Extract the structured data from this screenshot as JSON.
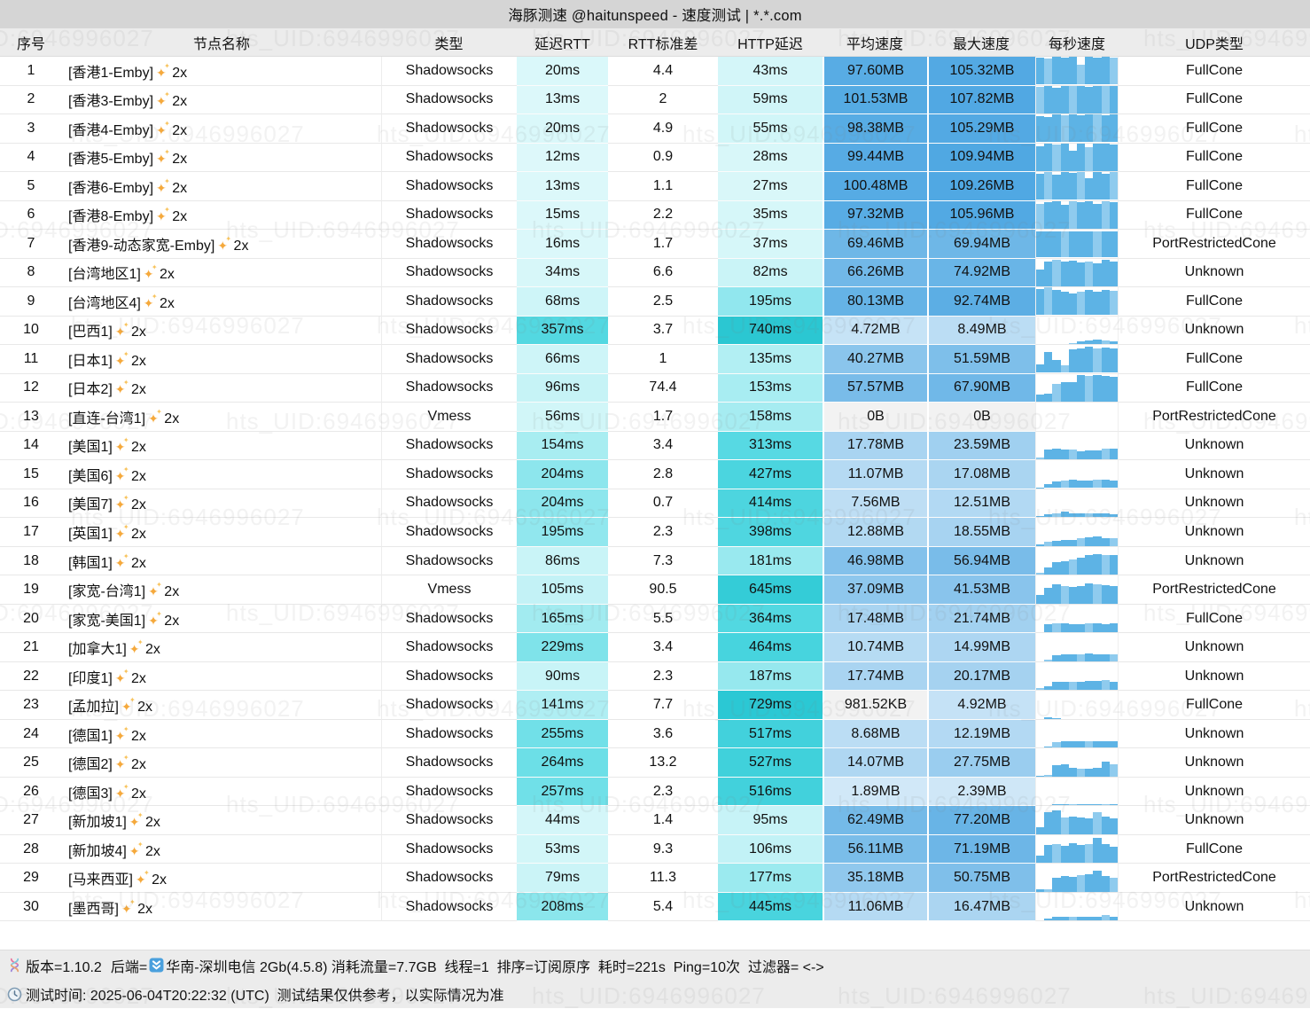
{
  "title": "海豚测速 @haitunspeed - 速度测试 | *.*.com",
  "watermark": "hts_UID:6946996027",
  "columns": [
    "序号",
    "节点名称",
    "类型",
    "延迟RTT",
    "RTT标准差",
    "HTTP延迟",
    "平均速度",
    "最大速度",
    "每秒速度",
    "UDP类型"
  ],
  "column_names": [
    "col-index",
    "col-node-name",
    "col-type",
    "col-latency-rtt",
    "col-rtt-stddev",
    "col-http-latency",
    "col-avg-speed",
    "col-max-speed",
    "col-speed-per-second",
    "col-udp-type"
  ],
  "icons": {
    "sparkle": "✦"
  },
  "colors": {
    "title_bar_bg": "#d5d5d5",
    "header_bg": "#ececec",
    "footer_bg": "#ececec",
    "speed_blue_strong": "#58ace4",
    "latency_teal_strong": "#2fb9c9",
    "bar_blue": "#5db3e5",
    "bar_blue_light": "#8fcbee",
    "zero_gray": "#f2f2f2",
    "sparkle_orange": "#f5a93c"
  },
  "rows": [
    {
      "no": "1",
      "name": "[香港1-Emby]",
      "mult": "2x",
      "type": "Shadowsocks",
      "rtt": "20ms",
      "rtt_ms": 20,
      "std": "4.4",
      "http": "43ms",
      "http_ms": 43,
      "avg": "97.60MB",
      "avg_mb": 97.6,
      "max": "105.32MB",
      "max_mb": 105.32,
      "udp": "FullCone",
      "bars": [
        98,
        95,
        100,
        97,
        100,
        72,
        100,
        98,
        100,
        97
      ]
    },
    {
      "no": "2",
      "name": "[香港3-Emby]",
      "mult": "2x",
      "type": "Shadowsocks",
      "rtt": "13ms",
      "rtt_ms": 13,
      "std": "2",
      "http": "59ms",
      "http_ms": 59,
      "avg": "101.53MB",
      "avg_mb": 101.53,
      "max": "107.82MB",
      "max_mb": 107.82,
      "udp": "FullCone",
      "bars": [
        97,
        100,
        93,
        100,
        98,
        100,
        97,
        100,
        99,
        100
      ]
    },
    {
      "no": "3",
      "name": "[香港4-Emby]",
      "mult": "2x",
      "type": "Shadowsocks",
      "rtt": "20ms",
      "rtt_ms": 20,
      "std": "4.9",
      "http": "55ms",
      "http_ms": 55,
      "avg": "98.38MB",
      "avg_mb": 98.38,
      "max": "105.29MB",
      "max_mb": 105.29,
      "udp": "FullCone",
      "bars": [
        95,
        90,
        100,
        97,
        100,
        98,
        100,
        100,
        97,
        100
      ]
    },
    {
      "no": "4",
      "name": "[香港5-Emby]",
      "mult": "2x",
      "type": "Shadowsocks",
      "rtt": "12ms",
      "rtt_ms": 12,
      "std": "0.9",
      "http": "28ms",
      "http_ms": 28,
      "avg": "99.44MB",
      "avg_mb": 99.44,
      "max": "109.94MB",
      "max_mb": 109.94,
      "udp": "FullCone",
      "bars": [
        90,
        100,
        95,
        100,
        75,
        100,
        85,
        100,
        100,
        95
      ]
    },
    {
      "no": "5",
      "name": "[香港6-Emby]",
      "mult": "2x",
      "type": "Shadowsocks",
      "rtt": "13ms",
      "rtt_ms": 13,
      "std": "1.1",
      "http": "27ms",
      "http_ms": 27,
      "avg": "100.48MB",
      "avg_mb": 100.48,
      "max": "109.26MB",
      "max_mb": 109.26,
      "udp": "FullCone",
      "bars": [
        95,
        100,
        90,
        100,
        97,
        100,
        80,
        100,
        95,
        100
      ]
    },
    {
      "no": "6",
      "name": "[香港8-Emby]",
      "mult": "2x",
      "type": "Shadowsocks",
      "rtt": "15ms",
      "rtt_ms": 15,
      "std": "2.2",
      "http": "35ms",
      "http_ms": 35,
      "avg": "97.32MB",
      "avg_mb": 97.32,
      "max": "105.96MB",
      "max_mb": 105.96,
      "udp": "FullCone",
      "bars": [
        90,
        95,
        100,
        85,
        100,
        95,
        100,
        90,
        100,
        95
      ]
    },
    {
      "no": "7",
      "name": "[香港9-动态家宽-Emby]",
      "mult": "2x",
      "type": "Shadowsocks",
      "rtt": "16ms",
      "rtt_ms": 16,
      "std": "1.7",
      "http": "37ms",
      "http_ms": 37,
      "avg": "69.46MB",
      "avg_mb": 69.46,
      "max": "69.94MB",
      "max_mb": 69.94,
      "udp": "PortRestrictedCone",
      "bars": [
        96,
        96,
        96,
        96,
        96,
        96,
        96,
        96,
        96,
        96
      ]
    },
    {
      "no": "8",
      "name": "[台湾地区1]",
      "mult": "2x",
      "type": "Shadowsocks",
      "rtt": "34ms",
      "rtt_ms": 34,
      "std": "6.6",
      "http": "82ms",
      "http_ms": 82,
      "avg": "66.26MB",
      "avg_mb": 66.26,
      "max": "74.92MB",
      "max_mb": 74.92,
      "udp": "Unknown",
      "bars": [
        60,
        90,
        95,
        90,
        92,
        88,
        90,
        85,
        95,
        90
      ]
    },
    {
      "no": "9",
      "name": "[台湾地区4]",
      "mult": "2x",
      "type": "Shadowsocks",
      "rtt": "68ms",
      "rtt_ms": 68,
      "std": "2.5",
      "http": "195ms",
      "http_ms": 195,
      "avg": "80.13MB",
      "avg_mb": 80.13,
      "max": "92.74MB",
      "max_mb": 92.74,
      "udp": "FullCone",
      "bars": [
        95,
        100,
        90,
        85,
        80,
        85,
        90,
        85,
        90,
        88
      ]
    },
    {
      "no": "10",
      "name": "[巴西1]",
      "mult": "2x",
      "type": "Shadowsocks",
      "rtt": "357ms",
      "rtt_ms": 357,
      "std": "3.7",
      "http": "740ms",
      "http_ms": 740,
      "avg": "4.72MB",
      "avg_mb": 4.72,
      "max": "8.49MB",
      "max_mb": 8.49,
      "udp": "Unknown",
      "bars": [
        0,
        0,
        0,
        0,
        4,
        8,
        12,
        15,
        12,
        10
      ]
    },
    {
      "no": "11",
      "name": "[日本1]",
      "mult": "2x",
      "type": "Shadowsocks",
      "rtt": "66ms",
      "rtt_ms": 66,
      "std": "1",
      "http": "135ms",
      "http_ms": 135,
      "avg": "40.27MB",
      "avg_mb": 40.27,
      "max": "51.59MB",
      "max_mb": 51.59,
      "udp": "FullCone",
      "bars": [
        30,
        75,
        45,
        28,
        85,
        90,
        95,
        90,
        92,
        88
      ]
    },
    {
      "no": "12",
      "name": "[日本2]",
      "mult": "2x",
      "type": "Shadowsocks",
      "rtt": "96ms",
      "rtt_ms": 96,
      "std": "74.4",
      "http": "153ms",
      "http_ms": 153,
      "avg": "57.57MB",
      "avg_mb": 57.57,
      "max": "67.90MB",
      "max_mb": 67.9,
      "udp": "FullCone",
      "bars": [
        25,
        30,
        65,
        72,
        70,
        95,
        92,
        95,
        93,
        90
      ]
    },
    {
      "no": "13",
      "name": "[直连-台湾1]",
      "mult": "2x",
      "type": "Vmess",
      "rtt": "56ms",
      "rtt_ms": 56,
      "std": "1.7",
      "http": "158ms",
      "http_ms": 158,
      "avg": "0B",
      "avg_mb": 0,
      "max": "0B",
      "max_mb": 0,
      "udp": "PortRestrictedCone",
      "bars": [
        0,
        0,
        0,
        0,
        0,
        0,
        0,
        0,
        0,
        0
      ]
    },
    {
      "no": "14",
      "name": "[美国1]",
      "mult": "2x",
      "type": "Shadowsocks",
      "rtt": "154ms",
      "rtt_ms": 154,
      "std": "3.4",
      "http": "313ms",
      "http_ms": 313,
      "avg": "17.78MB",
      "avg_mb": 17.78,
      "max": "23.59MB",
      "max_mb": 23.59,
      "udp": "Unknown",
      "bars": [
        5,
        35,
        37,
        35,
        36,
        30,
        32,
        33,
        40,
        37
      ]
    },
    {
      "no": "15",
      "name": "[美国6]",
      "mult": "2x",
      "type": "Shadowsocks",
      "rtt": "204ms",
      "rtt_ms": 204,
      "std": "2.8",
      "http": "427ms",
      "http_ms": 427,
      "avg": "11.07MB",
      "avg_mb": 11.07,
      "max": "17.08MB",
      "max_mb": 17.08,
      "udp": "Unknown",
      "bars": [
        3,
        15,
        25,
        27,
        30,
        28,
        27,
        30,
        32,
        28
      ]
    },
    {
      "no": "16",
      "name": "[美国7]",
      "mult": "2x",
      "type": "Shadowsocks",
      "rtt": "204ms",
      "rtt_ms": 204,
      "std": "0.7",
      "http": "414ms",
      "http_ms": 414,
      "avg": "7.56MB",
      "avg_mb": 7.56,
      "max": "12.51MB",
      "max_mb": 12.51,
      "udp": "Unknown",
      "bars": [
        3,
        10,
        12,
        18,
        13,
        12,
        14,
        13,
        12,
        11
      ]
    },
    {
      "no": "17",
      "name": "[英国1]",
      "mult": "2x",
      "type": "Shadowsocks",
      "rtt": "195ms",
      "rtt_ms": 195,
      "std": "2.3",
      "http": "398ms",
      "http_ms": 398,
      "avg": "12.88MB",
      "avg_mb": 12.88,
      "max": "18.55MB",
      "max_mb": 18.55,
      "udp": "Unknown",
      "bars": [
        5,
        14,
        17,
        20,
        22,
        26,
        30,
        33,
        28,
        26
      ]
    },
    {
      "no": "18",
      "name": "[韩国1]",
      "mult": "2x",
      "type": "Shadowsocks",
      "rtt": "86ms",
      "rtt_ms": 86,
      "std": "7.3",
      "http": "181ms",
      "http_ms": 181,
      "avg": "46.98MB",
      "avg_mb": 46.98,
      "max": "56.94MB",
      "max_mb": 56.94,
      "udp": "Unknown",
      "bars": [
        8,
        25,
        45,
        50,
        55,
        60,
        72,
        75,
        72,
        70
      ]
    },
    {
      "no": "19",
      "name": "[家宽-台湾1]",
      "mult": "2x",
      "type": "Vmess",
      "rtt": "105ms",
      "rtt_ms": 105,
      "std": "90.5",
      "http": "645ms",
      "http_ms": 645,
      "avg": "37.09MB",
      "avg_mb": 37.09,
      "max": "41.53MB",
      "max_mb": 41.53,
      "udp": "PortRestrictedCone",
      "bars": [
        30,
        55,
        68,
        62,
        60,
        62,
        72,
        70,
        66,
        63
      ]
    },
    {
      "no": "20",
      "name": "[家宽-美国1]",
      "mult": "2x",
      "type": "Shadowsocks",
      "rtt": "165ms",
      "rtt_ms": 165,
      "std": "5.5",
      "http": "364ms",
      "http_ms": 364,
      "avg": "17.48MB",
      "avg_mb": 17.48,
      "max": "21.74MB",
      "max_mb": 21.74,
      "udp": "FullCone",
      "bars": [
        0,
        30,
        32,
        33,
        30,
        30,
        32,
        31,
        30,
        32
      ]
    },
    {
      "no": "21",
      "name": "[加拿大1]",
      "mult": "2x",
      "type": "Shadowsocks",
      "rtt": "229ms",
      "rtt_ms": 229,
      "std": "3.4",
      "http": "464ms",
      "http_ms": 464,
      "avg": "10.74MB",
      "avg_mb": 10.74,
      "max": "14.99MB",
      "max_mb": 14.99,
      "udp": "Unknown",
      "bars": [
        0,
        5,
        22,
        25,
        25,
        24,
        27,
        25,
        25,
        24
      ]
    },
    {
      "no": "22",
      "name": "[印度1]",
      "mult": "2x",
      "type": "Shadowsocks",
      "rtt": "90ms",
      "rtt_ms": 90,
      "std": "2.3",
      "http": "187ms",
      "http_ms": 187,
      "avg": "17.74MB",
      "avg_mb": 17.74,
      "max": "20.17MB",
      "max_mb": 20.17,
      "udp": "Unknown",
      "bars": [
        8,
        12,
        30,
        30,
        30,
        30,
        32,
        32,
        35,
        30
      ]
    },
    {
      "no": "23",
      "name": "[孟加拉]",
      "mult": "2x",
      "type": "Shadowsocks",
      "rtt": "141ms",
      "rtt_ms": 141,
      "std": "7.7",
      "http": "729ms",
      "http_ms": 729,
      "avg": "981.52KB",
      "avg_mb": 0.96,
      "max": "4.92MB",
      "max_mb": 4.92,
      "udp": "FullCone",
      "bars": [
        0,
        6,
        2,
        0,
        0,
        0,
        0,
        0,
        0,
        0
      ]
    },
    {
      "no": "24",
      "name": "[德国1]",
      "mult": "2x",
      "type": "Shadowsocks",
      "rtt": "255ms",
      "rtt_ms": 255,
      "std": "3.6",
      "http": "517ms",
      "http_ms": 517,
      "avg": "8.68MB",
      "avg_mb": 8.68,
      "max": "12.19MB",
      "max_mb": 12.19,
      "udp": "Unknown",
      "bars": [
        0,
        5,
        20,
        22,
        22,
        22,
        23,
        22,
        22,
        22
      ]
    },
    {
      "no": "25",
      "name": "[德国2]",
      "mult": "2x",
      "type": "Shadowsocks",
      "rtt": "264ms",
      "rtt_ms": 264,
      "std": "13.2",
      "http": "527ms",
      "http_ms": 527,
      "avg": "14.07MB",
      "avg_mb": 14.07,
      "max": "27.75MB",
      "max_mb": 27.75,
      "udp": "Unknown",
      "bars": [
        2,
        5,
        40,
        45,
        30,
        28,
        27,
        30,
        55,
        45
      ]
    },
    {
      "no": "26",
      "name": "[德国3]",
      "mult": "2x",
      "type": "Shadowsocks",
      "rtt": "257ms",
      "rtt_ms": 257,
      "std": "2.3",
      "http": "516ms",
      "http_ms": 516,
      "avg": "1.89MB",
      "avg_mb": 1.89,
      "max": "2.39MB",
      "max_mb": 2.39,
      "udp": "Unknown",
      "bars": [
        1,
        2,
        4,
        4,
        5,
        4,
        4,
        5,
        4,
        4
      ]
    },
    {
      "no": "27",
      "name": "[新加坡1]",
      "mult": "2x",
      "type": "Shadowsocks",
      "rtt": "44ms",
      "rtt_ms": 44,
      "std": "1.4",
      "http": "95ms",
      "http_ms": 95,
      "avg": "62.49MB",
      "avg_mb": 62.49,
      "max": "77.20MB",
      "max_mb": 77.2,
      "udp": "Unknown",
      "bars": [
        25,
        80,
        85,
        60,
        62,
        60,
        58,
        80,
        62,
        58
      ]
    },
    {
      "no": "28",
      "name": "[新加坡4]",
      "mult": "2x",
      "type": "Shadowsocks",
      "rtt": "53ms",
      "rtt_ms": 53,
      "std": "9.3",
      "http": "106ms",
      "http_ms": 106,
      "avg": "56.11MB",
      "avg_mb": 56.11,
      "max": "71.19MB",
      "max_mb": 71.19,
      "udp": "FullCone",
      "bars": [
        25,
        65,
        68,
        62,
        70,
        65,
        68,
        92,
        68,
        60
      ]
    },
    {
      "no": "29",
      "name": "[马来西亚]",
      "mult": "2x",
      "type": "Shadowsocks",
      "rtt": "79ms",
      "rtt_ms": 79,
      "std": "11.3",
      "http": "177ms",
      "http_ms": 177,
      "avg": "35.18MB",
      "avg_mb": 35.18,
      "max": "50.75MB",
      "max_mb": 50.75,
      "udp": "PortRestrictedCone",
      "bars": [
        10,
        8,
        50,
        58,
        55,
        60,
        62,
        78,
        58,
        52
      ]
    },
    {
      "no": "30",
      "name": "[墨西哥]",
      "mult": "2x",
      "type": "Shadowsocks",
      "rtt": "208ms",
      "rtt_ms": 208,
      "std": "5.4",
      "http": "445ms",
      "http_ms": 445,
      "avg": "11.06MB",
      "avg_mb": 11.06,
      "max": "16.47MB",
      "max_mb": 16.47,
      "udp": "Unknown",
      "bars": [
        0,
        6,
        12,
        15,
        13,
        15,
        12,
        15,
        20,
        15
      ]
    }
  ],
  "footer": {
    "version": "版本=1.10.2",
    "backend_label": "后端=",
    "backend_value": "华南-深圳电信 2Gb(4.5.8)",
    "stats": " 消耗流量=7.7GB  线程=1  排序=订阅原序  耗时=221s  Ping=10次  过滤器= <->",
    "test_time": "测试时间: 2025-06-04T20:22:32 (UTC)",
    "disclaimer": "  测试结果仅供参考，以实际情况为准"
  }
}
